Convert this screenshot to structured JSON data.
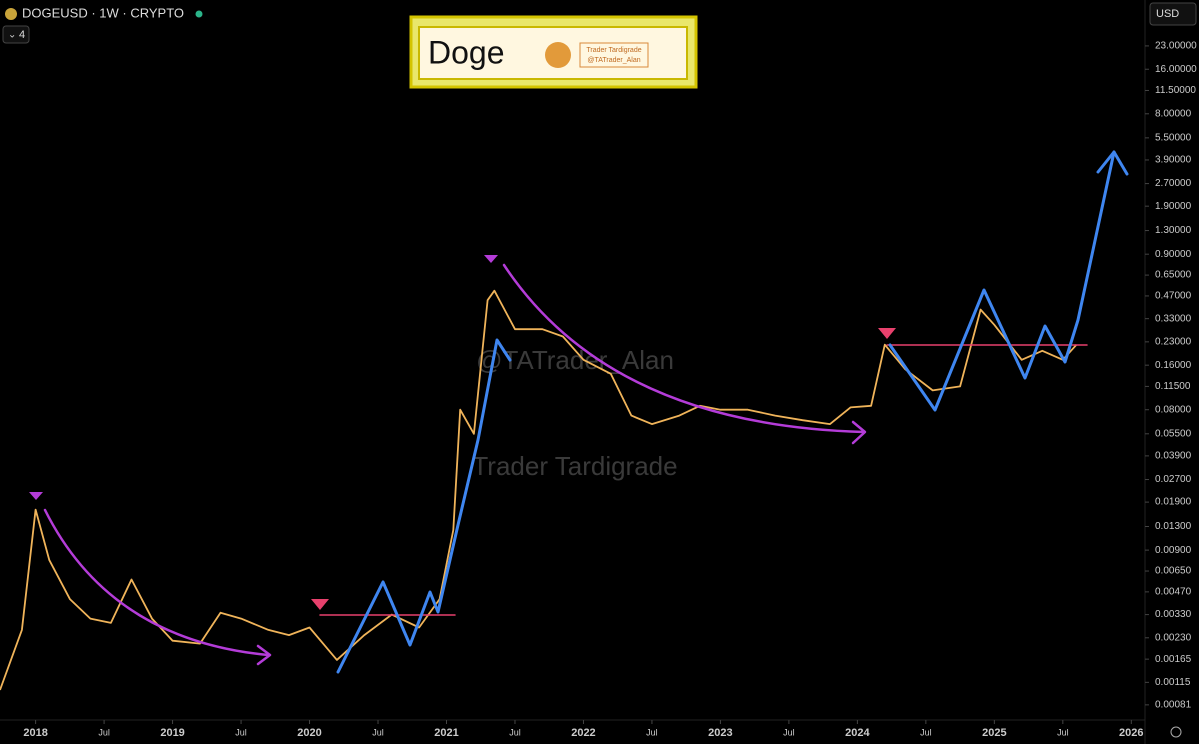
{
  "chart_data": {
    "type": "line",
    "symbol": "DOGEUSD · 1W · CRYPTO",
    "interval_badge": "4",
    "currency": "USD",
    "title": "Doge",
    "logo_text": [
      "Trader Tardigrade",
      "@TATrader_Alan"
    ],
    "watermarks": [
      "@TATrader_Alan",
      "Trader Tardigrade"
    ],
    "log_scale": true,
    "grid": false,
    "x": [
      2017.74,
      2017.9,
      2018.0,
      2018.1,
      2018.25,
      2018.4,
      2018.55,
      2018.7,
      2018.85,
      2019.0,
      2019.2,
      2019.35,
      2019.5,
      2019.7,
      2019.85,
      2020.0,
      2020.2,
      2020.4,
      2020.6,
      2020.8,
      2020.95,
      2021.05,
      2021.1,
      2021.2,
      2021.3,
      2021.35,
      2021.5,
      2021.7,
      2021.85,
      2022.0,
      2022.2,
      2022.35,
      2022.5,
      2022.7,
      2022.85,
      2023.0,
      2023.2,
      2023.4,
      2023.6,
      2023.8,
      2023.95,
      2024.1,
      2024.2,
      2024.35,
      2024.55,
      2024.75,
      2024.9,
      2025.0,
      2025.2,
      2025.35,
      2025.5,
      2025.6
    ],
    "series": [
      {
        "color": "#f0b45a",
        "values": [
          0.00102,
          0.0026,
          0.0169,
          0.0077,
          0.0042,
          0.0031,
          0.0029,
          0.0057,
          0.0031,
          0.0022,
          0.0021,
          0.0034,
          0.0031,
          0.0026,
          0.0024,
          0.0027,
          0.00163,
          0.0024,
          0.0033,
          0.0027,
          0.0042,
          0.0123,
          0.08,
          0.055,
          0.44,
          0.51,
          0.28,
          0.28,
          0.25,
          0.174,
          0.14,
          0.073,
          0.064,
          0.073,
          0.085,
          0.08,
          0.08,
          0.073,
          0.068,
          0.064,
          0.083,
          0.085,
          0.22,
          0.15,
          0.108,
          0.115,
          0.38,
          0.3,
          0.174,
          0.2,
          0.174,
          0.22
        ]
      }
    ],
    "xlim": [
      2017.74,
      2026.1
    ],
    "xticks": [
      {
        "value": 2018,
        "label": "2018"
      },
      {
        "value": 2018.5,
        "label": "Jul"
      },
      {
        "value": 2019,
        "label": "2019"
      },
      {
        "value": 2019.5,
        "label": "Jul"
      },
      {
        "value": 2020,
        "label": "2020"
      },
      {
        "value": 2020.5,
        "label": "Jul"
      },
      {
        "value": 2021,
        "label": "2021"
      },
      {
        "value": 2021.5,
        "label": "Jul"
      },
      {
        "value": 2022,
        "label": "2022"
      },
      {
        "value": 2022.5,
        "label": "Jul"
      },
      {
        "value": 2023,
        "label": "2023"
      },
      {
        "value": 2023.5,
        "label": "Jul"
      },
      {
        "value": 2024,
        "label": "2024"
      },
      {
        "value": 2024.5,
        "label": "Jul"
      },
      {
        "value": 2025,
        "label": "2025"
      },
      {
        "value": 2025.5,
        "label": "Jul"
      },
      {
        "value": 2026,
        "label": "2026"
      }
    ],
    "ylim": [
      0.00064,
      47
    ],
    "yticks": [
      {
        "value": 23,
        "label": "23.00000"
      },
      {
        "value": 16,
        "label": "16.00000"
      },
      {
        "value": 11.5,
        "label": "11.50000"
      },
      {
        "value": 8,
        "label": "8.00000"
      },
      {
        "value": 5.5,
        "label": "5.50000"
      },
      {
        "value": 3.9,
        "label": "3.90000"
      },
      {
        "value": 2.7,
        "label": "2.70000"
      },
      {
        "value": 1.9,
        "label": "1.90000"
      },
      {
        "value": 1.3,
        "label": "1.30000"
      },
      {
        "value": 0.9,
        "label": "0.90000"
      },
      {
        "value": 0.65,
        "label": "0.65000"
      },
      {
        "value": 0.47,
        "label": "0.47000"
      },
      {
        "value": 0.33,
        "label": "0.33000"
      },
      {
        "value": 0.23,
        "label": "0.23000"
      },
      {
        "value": 0.16,
        "label": "0.16000"
      },
      {
        "value": 0.115,
        "label": "0.11500"
      },
      {
        "value": 0.08,
        "label": "0.08000"
      },
      {
        "value": 0.055,
        "label": "0.05500"
      },
      {
        "value": 0.039,
        "label": "0.03900"
      },
      {
        "value": 0.027,
        "label": "0.02700"
      },
      {
        "value": 0.019,
        "label": "0.01900"
      },
      {
        "value": 0.013,
        "label": "0.01300"
      },
      {
        "value": 0.009,
        "label": "0.00900"
      },
      {
        "value": 0.0065,
        "label": "0.00650"
      },
      {
        "value": 0.0047,
        "label": "0.00470"
      },
      {
        "value": 0.0033,
        "label": "0.00330"
      },
      {
        "value": 0.0023,
        "label": "0.00230"
      },
      {
        "value": 0.00165,
        "label": "0.00165"
      },
      {
        "value": 0.00115,
        "label": "0.00115"
      },
      {
        "value": 0.00081,
        "label": "0.00081"
      }
    ]
  }
}
